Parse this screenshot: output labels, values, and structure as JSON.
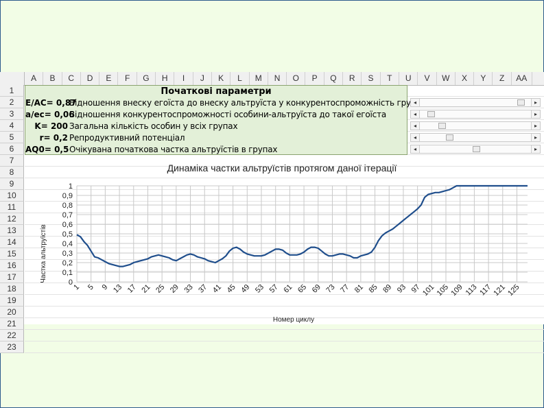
{
  "columns": [
    "A",
    "B",
    "C",
    "D",
    "E",
    "F",
    "G",
    "H",
    "I",
    "J",
    "K",
    "L",
    "M",
    "N",
    "O",
    "P",
    "Q",
    "R",
    "S",
    "T",
    "U",
    "V",
    "W",
    "X",
    "Y",
    "Z",
    "AA"
  ],
  "rows": [
    "1",
    "2",
    "3",
    "4",
    "5",
    "6",
    "7",
    "8",
    "9",
    "10",
    "11",
    "12",
    "13",
    "14",
    "15",
    "16",
    "17",
    "18",
    "19",
    "20",
    "21",
    "22",
    "23"
  ],
  "params": {
    "title": "Початкові параметри",
    "items": [
      {
        "label": "E/AC= 0,87",
        "desc": "Відношення внеску егоїста до внеску альтруїста у конкурентоспроможність групи",
        "slider": 0.92
      },
      {
        "label": "a/ec= 0,06",
        "desc": "Відношення конкурентоспроможності особини-альтруїста до такої егоїста",
        "slider": 0.08
      },
      {
        "label": "K= 200",
        "desc": "Загальна кількість особин у всіх групах",
        "slider": 0.18
      },
      {
        "label": "r= 0,2",
        "desc": "Репродуктивний потенціал",
        "slider": 0.25
      },
      {
        "label": "AQ0= 0,5",
        "desc": "Очікувана початкова частка альтруїстів в групах",
        "slider": 0.5
      }
    ]
  },
  "chart_data": {
    "type": "line",
    "title": "Динаміка частки альтруїстів протягом даної ітерації",
    "xlabel": "Номер циклу",
    "ylabel": "Частка альтруїстів",
    "ylim": [
      0,
      1
    ],
    "yticks": [
      "0",
      "0,1",
      "0,2",
      "0,3",
      "0,4",
      "0,5",
      "0,6",
      "0,7",
      "0,8",
      "0,9",
      "1"
    ],
    "xticks": [
      1,
      5,
      9,
      13,
      17,
      21,
      25,
      29,
      33,
      37,
      41,
      45,
      49,
      53,
      57,
      61,
      65,
      69,
      73,
      77,
      81,
      85,
      89,
      93,
      97,
      101,
      105,
      109,
      113,
      117,
      121,
      125
    ],
    "xlim": [
      1,
      128
    ],
    "grid": true,
    "color": "#1f4e8c",
    "series": [
      {
        "points": [
          [
            1,
            0.49
          ],
          [
            2,
            0.47
          ],
          [
            3,
            0.42
          ],
          [
            4,
            0.38
          ],
          [
            5,
            0.32
          ],
          [
            6,
            0.26
          ],
          [
            7,
            0.25
          ],
          [
            8,
            0.23
          ],
          [
            9,
            0.21
          ],
          [
            10,
            0.19
          ],
          [
            11,
            0.18
          ],
          [
            12,
            0.17
          ],
          [
            13,
            0.16
          ],
          [
            14,
            0.16
          ],
          [
            15,
            0.17
          ],
          [
            16,
            0.18
          ],
          [
            17,
            0.2
          ],
          [
            18,
            0.21
          ],
          [
            19,
            0.22
          ],
          [
            20,
            0.23
          ],
          [
            21,
            0.24
          ],
          [
            22,
            0.26
          ],
          [
            23,
            0.27
          ],
          [
            24,
            0.28
          ],
          [
            25,
            0.27
          ],
          [
            26,
            0.26
          ],
          [
            27,
            0.25
          ],
          [
            28,
            0.23
          ],
          [
            29,
            0.22
          ],
          [
            30,
            0.24
          ],
          [
            31,
            0.26
          ],
          [
            32,
            0.28
          ],
          [
            33,
            0.29
          ],
          [
            34,
            0.28
          ],
          [
            35,
            0.26
          ],
          [
            36,
            0.25
          ],
          [
            37,
            0.24
          ],
          [
            38,
            0.22
          ],
          [
            39,
            0.21
          ],
          [
            40,
            0.2
          ],
          [
            41,
            0.22
          ],
          [
            42,
            0.24
          ],
          [
            43,
            0.27
          ],
          [
            44,
            0.32
          ],
          [
            45,
            0.35
          ],
          [
            46,
            0.36
          ],
          [
            47,
            0.34
          ],
          [
            48,
            0.31
          ],
          [
            49,
            0.29
          ],
          [
            50,
            0.28
          ],
          [
            51,
            0.27
          ],
          [
            52,
            0.27
          ],
          [
            53,
            0.27
          ],
          [
            54,
            0.28
          ],
          [
            55,
            0.3
          ],
          [
            56,
            0.32
          ],
          [
            57,
            0.34
          ],
          [
            58,
            0.34
          ],
          [
            59,
            0.33
          ],
          [
            60,
            0.3
          ],
          [
            61,
            0.28
          ],
          [
            62,
            0.28
          ],
          [
            63,
            0.28
          ],
          [
            64,
            0.29
          ],
          [
            65,
            0.31
          ],
          [
            66,
            0.34
          ],
          [
            67,
            0.36
          ],
          [
            68,
            0.36
          ],
          [
            69,
            0.35
          ],
          [
            70,
            0.32
          ],
          [
            71,
            0.29
          ],
          [
            72,
            0.27
          ],
          [
            73,
            0.27
          ],
          [
            74,
            0.28
          ],
          [
            75,
            0.29
          ],
          [
            76,
            0.29
          ],
          [
            77,
            0.28
          ],
          [
            78,
            0.27
          ],
          [
            79,
            0.25
          ],
          [
            80,
            0.25
          ],
          [
            81,
            0.27
          ],
          [
            82,
            0.28
          ],
          [
            83,
            0.29
          ],
          [
            84,
            0.31
          ],
          [
            85,
            0.36
          ],
          [
            86,
            0.43
          ],
          [
            87,
            0.48
          ],
          [
            88,
            0.51
          ],
          [
            89,
            0.53
          ],
          [
            90,
            0.55
          ],
          [
            91,
            0.58
          ],
          [
            92,
            0.61
          ],
          [
            93,
            0.64
          ],
          [
            94,
            0.67
          ],
          [
            95,
            0.7
          ],
          [
            96,
            0.73
          ],
          [
            97,
            0.76
          ],
          [
            98,
            0.8
          ],
          [
            99,
            0.88
          ],
          [
            100,
            0.91
          ],
          [
            101,
            0.92
          ],
          [
            102,
            0.93
          ],
          [
            103,
            0.93
          ],
          [
            104,
            0.94
          ],
          [
            105,
            0.95
          ],
          [
            106,
            0.96
          ],
          [
            107,
            0.98
          ],
          [
            108,
            1
          ],
          [
            109,
            1
          ],
          [
            110,
            1
          ],
          [
            111,
            1
          ],
          [
            112,
            1
          ],
          [
            113,
            1
          ],
          [
            114,
            1
          ],
          [
            115,
            1
          ],
          [
            116,
            1
          ],
          [
            117,
            1
          ],
          [
            118,
            1
          ],
          [
            119,
            1
          ],
          [
            120,
            1
          ],
          [
            121,
            1
          ],
          [
            122,
            1
          ],
          [
            123,
            1
          ],
          [
            124,
            1
          ],
          [
            125,
            1
          ],
          [
            126,
            1
          ],
          [
            127,
            1
          ],
          [
            128,
            1
          ]
        ]
      }
    ]
  }
}
